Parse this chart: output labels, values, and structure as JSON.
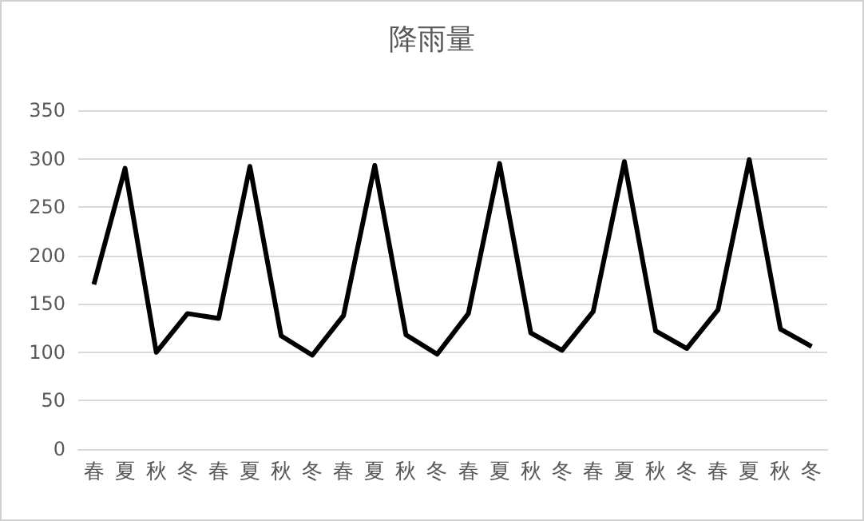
{
  "chart_data": {
    "type": "line",
    "title": "降雨量",
    "categories": [
      "春",
      "夏",
      "秋",
      "冬",
      "春",
      "夏",
      "秋",
      "冬",
      "春",
      "夏",
      "秋",
      "冬",
      "春",
      "夏",
      "秋",
      "冬",
      "春",
      "夏",
      "秋",
      "冬",
      "春",
      "夏",
      "秋",
      "冬"
    ],
    "values": [
      170,
      290,
      100,
      140,
      135,
      292,
      117,
      97,
      138,
      293,
      118,
      98,
      140,
      295,
      120,
      102,
      142,
      297,
      122,
      104,
      144,
      299,
      124,
      106
    ],
    "color": "#000000",
    "ylim": [
      0,
      350
    ],
    "yticks": [
      0,
      50,
      100,
      150,
      200,
      250,
      300,
      350
    ],
    "grid": "y",
    "marker": "none",
    "line_style": "solid"
  }
}
